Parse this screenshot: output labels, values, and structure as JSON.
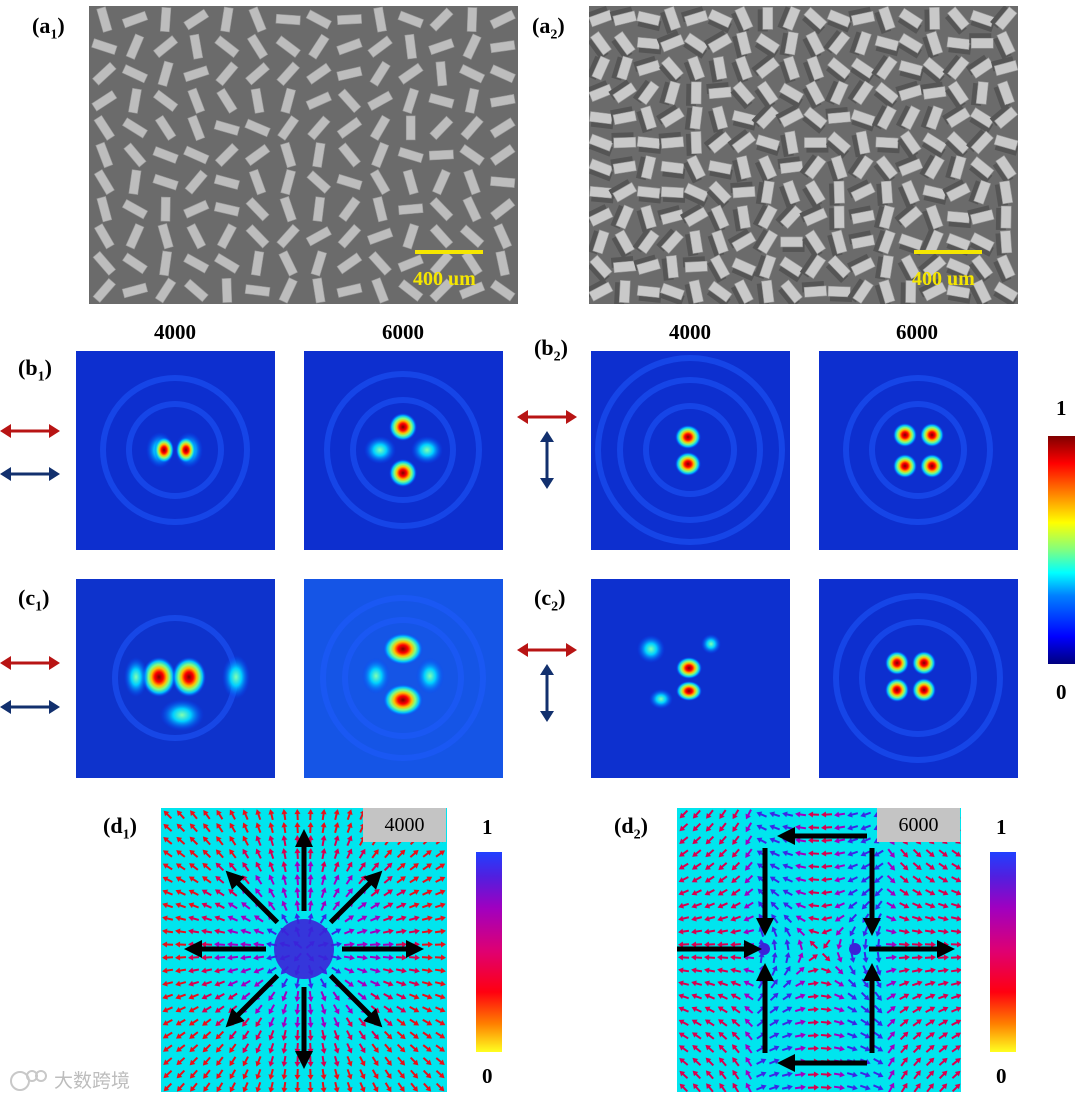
{
  "panels": {
    "a1": {
      "label": "a",
      "sub": "1",
      "scale_text": "400 um"
    },
    "a2": {
      "label": "a",
      "sub": "2",
      "scale_text": "400 um"
    },
    "b1": {
      "label": "b",
      "sub": "1"
    },
    "b2": {
      "label": "b",
      "sub": "2"
    },
    "c1": {
      "label": "c",
      "sub": "1"
    },
    "c2": {
      "label": "c",
      "sub": "2"
    },
    "d1": {
      "label": "d",
      "sub": "1",
      "tag": "4000"
    },
    "d2": {
      "label": "d",
      "sub": "2",
      "tag": "6000"
    }
  },
  "column_headers": [
    "4000",
    "6000",
    "4000",
    "6000"
  ],
  "colorbar_jet": {
    "max": "1",
    "min": "0"
  },
  "colorbar_d1": {
    "max": "1",
    "min": "0"
  },
  "colorbar_d2": {
    "max": "1",
    "min": "0"
  },
  "colors": {
    "scale_bar": "#f5e600",
    "arrow_red": "#b81414",
    "arrow_blue": "#12306e",
    "field_bg": "#00e5ee"
  },
  "watermark": "大数跨境"
}
